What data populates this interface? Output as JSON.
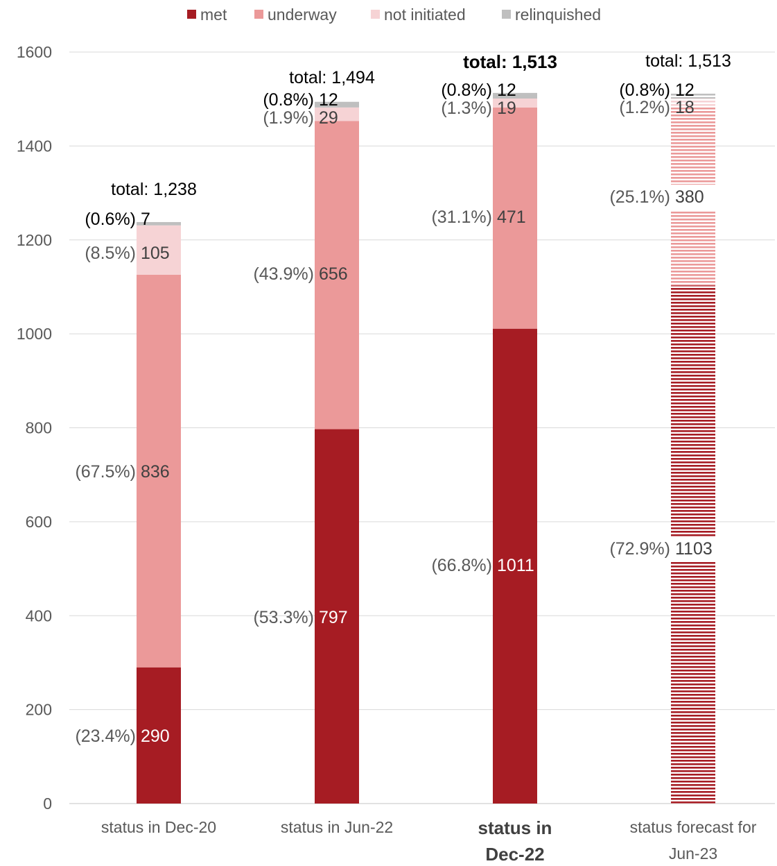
{
  "chart_data": {
    "type": "bar",
    "stacked": true,
    "categories": [
      "status in Dec-20",
      "status in Jun-22",
      "status in\nDec-22",
      "status forecast for\nJun-23"
    ],
    "highlight_category_index": 2,
    "forecast_category_index": 3,
    "series": [
      {
        "name": "met",
        "color": "#a61c23",
        "values": [
          290,
          797,
          1011,
          1103
        ],
        "labels": [
          "(23.4%) 290",
          "(53.3%) 797",
          "(66.8%) 1011",
          "(72.9%) 1103"
        ]
      },
      {
        "name": "underway",
        "color": "#eb9999",
        "values": [
          836,
          656,
          471,
          380
        ],
        "labels": [
          "(67.5%) 836",
          "(43.9%) 656",
          "(31.1%) 471",
          "(25.1%) 380"
        ]
      },
      {
        "name": "not initiated",
        "color": "#f6d3d5",
        "values": [
          105,
          29,
          19,
          18
        ],
        "labels": [
          "(8.5%) 105",
          "(1.9%) 29",
          "(1.3%) 19",
          "(1.2%) 18"
        ]
      },
      {
        "name": "relinquished",
        "color": "#bfbfbf",
        "values": [
          7,
          12,
          12,
          12
        ],
        "labels": [
          "(0.6%) 7",
          "(0.8%) 12",
          "(0.8%) 12",
          "(0.8%) 12"
        ]
      }
    ],
    "totals": [
      "total: 1,238",
      "total: 1,494",
      "total: 1,513",
      "total: 1,513"
    ],
    "ylim": [
      0,
      1600
    ],
    "yticks": [
      0,
      200,
      400,
      600,
      800,
      1000,
      1200,
      1400,
      1600
    ],
    "grid": true,
    "legend": "top-center",
    "title": "",
    "xlabel": "",
    "ylabel": ""
  }
}
